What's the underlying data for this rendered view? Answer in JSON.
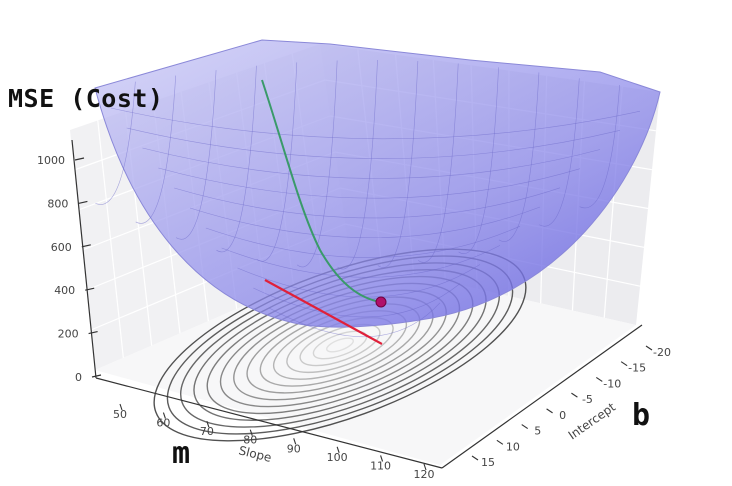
{
  "chart_data": {
    "type": "surface3d",
    "title": "",
    "zlabel": "MSE (Cost)",
    "xlabel": "Slope",
    "ylabel": "Intercept",
    "x_big_label": "m",
    "y_big_label": "b",
    "z_ticks": [
      "0",
      "200",
      "400",
      "600",
      "800",
      "1000"
    ],
    "x_ticks": [
      "50",
      "60",
      "70",
      "80",
      "90",
      "100",
      "110",
      "120"
    ],
    "y_ticks": [
      "-20",
      "-15",
      "-10",
      "-5",
      "0",
      "5",
      "10",
      "15"
    ],
    "zlim": [
      0,
      1050
    ],
    "surface": "paraboloid with contour projection on the floor",
    "surface_color": "#7b78e6",
    "path_color": "#3a9a6a",
    "tangent_color": "#e0203a",
    "point_color": "#b0106a",
    "grid": true
  }
}
